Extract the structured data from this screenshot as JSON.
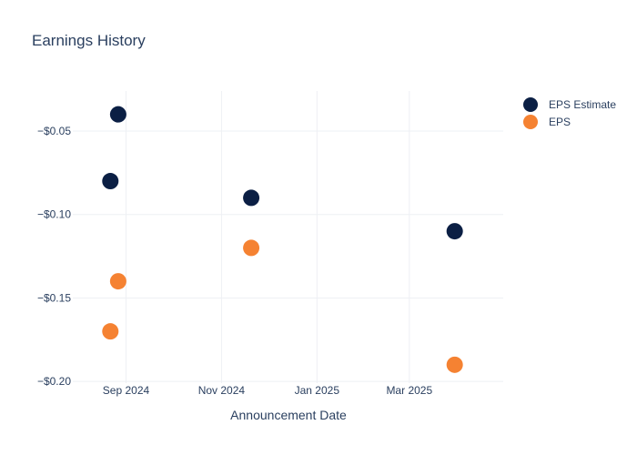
{
  "chart_data": {
    "type": "scatter",
    "title": "Earnings History",
    "xlabel": "Announcement Date",
    "ylabel": "",
    "x_ticks": [
      "Sep 2024",
      "Nov 2024",
      "Jan 2025",
      "Mar 2025"
    ],
    "x_tick_dates": [
      "2024-09-01",
      "2024-11-01",
      "2025-01-01",
      "2025-03-01"
    ],
    "xlim": [
      "2024-07-29",
      "2025-04-30"
    ],
    "y_ticks": [
      "−$0.05",
      "−$0.10",
      "−$0.15",
      "−$0.20"
    ],
    "y_tick_values": [
      -0.05,
      -0.1,
      -0.15,
      -0.2
    ],
    "ylim": [
      -0.201,
      -0.026
    ],
    "grid": true,
    "legend_position": "top-right",
    "series": [
      {
        "name": "EPS Estimate",
        "color": "#0b1f44",
        "points": [
          {
            "x": "2024-08-22",
            "y": -0.08
          },
          {
            "x": "2024-08-27",
            "y": -0.04
          },
          {
            "x": "2024-11-20",
            "y": -0.09
          },
          {
            "x": "2025-03-30",
            "y": -0.11
          }
        ]
      },
      {
        "name": "EPS",
        "color": "#f58232",
        "points": [
          {
            "x": "2024-08-22",
            "y": -0.17
          },
          {
            "x": "2024-08-27",
            "y": -0.14
          },
          {
            "x": "2024-11-20",
            "y": -0.12
          },
          {
            "x": "2025-03-30",
            "y": -0.19
          }
        ]
      }
    ]
  }
}
